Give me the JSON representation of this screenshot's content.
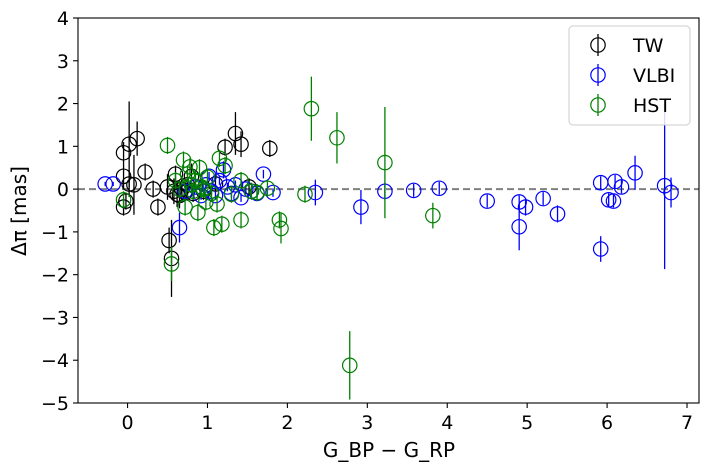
{
  "chart_data": {
    "type": "scatter",
    "xlabel": "G_BP − G_RP",
    "ylabel": "Δπ   [mas]",
    "xlim": [
      -0.62,
      7.15
    ],
    "ylim": [
      -5,
      4
    ],
    "x_ticks": [
      0,
      1,
      2,
      3,
      4,
      5,
      6,
      7
    ],
    "y_ticks": [
      4,
      3,
      2,
      1,
      0,
      -1,
      -2,
      -3,
      -4,
      -5
    ],
    "reference_line": {
      "y": 0,
      "style": "dashed",
      "color": "#808080"
    },
    "legend_position": "top-right",
    "grid": false,
    "series": [
      {
        "name": "TW",
        "color": "#000000",
        "points": [
          {
            "x": -0.05,
            "y": 0.85,
            "err": 0.25
          },
          {
            "x": 0.02,
            "y": 1.05,
            "err": 1.0
          },
          {
            "x": 0.12,
            "y": 1.18,
            "err": 0.4
          },
          {
            "x": -0.05,
            "y": 0.3,
            "err": 0.3
          },
          {
            "x": 0.02,
            "y": 0.12,
            "err": 0.3
          },
          {
            "x": 0.08,
            "y": 0.1,
            "err": 0.7
          },
          {
            "x": 0.22,
            "y": 0.4,
            "err": 0.2
          },
          {
            "x": 0.32,
            "y": 0.0,
            "err": 0.2
          },
          {
            "x": 0.38,
            "y": -0.42,
            "err": 0.2
          },
          {
            "x": 0.5,
            "y": 0.05,
            "err": 0.3
          },
          {
            "x": -0.05,
            "y": -0.42,
            "err": 0.2
          },
          {
            "x": -0.02,
            "y": -0.28,
            "err": 0.2
          },
          {
            "x": 0.52,
            "y": -1.2,
            "err": 0.3
          },
          {
            "x": 0.55,
            "y": -1.62,
            "err": 0.9
          },
          {
            "x": 0.58,
            "y": -0.05,
            "err": 0.3
          },
          {
            "x": 0.6,
            "y": 0.35,
            "err": 0.2
          },
          {
            "x": 0.62,
            "y": -0.12,
            "err": 0.3
          },
          {
            "x": 0.65,
            "y": -0.15,
            "err": 0.3
          },
          {
            "x": 0.68,
            "y": 0.0,
            "err": 0.3
          },
          {
            "x": 0.72,
            "y": -0.08,
            "err": 0.2
          },
          {
            "x": 0.75,
            "y": 0.1,
            "err": 0.3
          },
          {
            "x": 0.8,
            "y": 0.3,
            "err": 0.3
          },
          {
            "x": 0.82,
            "y": -0.1,
            "err": 0.2
          },
          {
            "x": 0.95,
            "y": -0.05,
            "err": 0.2
          },
          {
            "x": 1.1,
            "y": 0.12,
            "err": 0.2
          },
          {
            "x": 1.22,
            "y": 0.98,
            "err": 0.2
          },
          {
            "x": 1.35,
            "y": 1.3,
            "err": 0.5
          },
          {
            "x": 1.42,
            "y": 1.05,
            "err": 0.3
          },
          {
            "x": 1.52,
            "y": 0.05,
            "err": 0.2
          },
          {
            "x": 1.78,
            "y": 0.95,
            "err": 0.2
          }
        ]
      },
      {
        "name": "VLBI",
        "color": "#0000ff",
        "points": [
          {
            "x": -0.28,
            "y": 0.12,
            "err": 0.05
          },
          {
            "x": -0.18,
            "y": 0.12,
            "err": 0.05
          },
          {
            "x": 0.65,
            "y": -0.9,
            "err": 0.35
          },
          {
            "x": 0.72,
            "y": -0.05,
            "err": 0.1
          },
          {
            "x": 0.85,
            "y": 0.05,
            "err": 0.1
          },
          {
            "x": 0.92,
            "y": -0.15,
            "err": 0.1
          },
          {
            "x": 0.98,
            "y": 0.1,
            "err": 0.1
          },
          {
            "x": 1.02,
            "y": 0.3,
            "err": 0.1
          },
          {
            "x": 1.05,
            "y": -0.05,
            "err": 0.1
          },
          {
            "x": 1.1,
            "y": -0.15,
            "err": 0.1
          },
          {
            "x": 1.15,
            "y": 0.2,
            "err": 0.1
          },
          {
            "x": 1.2,
            "y": 0.45,
            "err": 0.2
          },
          {
            "x": 1.25,
            "y": 0.05,
            "err": 0.1
          },
          {
            "x": 1.3,
            "y": -0.1,
            "err": 0.1
          },
          {
            "x": 1.35,
            "y": 0.1,
            "err": 0.1
          },
          {
            "x": 1.42,
            "y": -0.2,
            "err": 0.1
          },
          {
            "x": 1.48,
            "y": 0.0,
            "err": 0.1
          },
          {
            "x": 1.55,
            "y": -0.05,
            "err": 0.1
          },
          {
            "x": 1.62,
            "y": -0.1,
            "err": 0.1
          },
          {
            "x": 1.7,
            "y": 0.35,
            "err": 0.1
          },
          {
            "x": 1.82,
            "y": -0.08,
            "err": 0.1
          },
          {
            "x": 2.35,
            "y": -0.08,
            "err": 0.3
          },
          {
            "x": 2.92,
            "y": -0.42,
            "err": 0.4
          },
          {
            "x": 3.22,
            "y": -0.05,
            "err": 0.2
          },
          {
            "x": 3.58,
            "y": -0.03,
            "err": 0.15
          },
          {
            "x": 3.9,
            "y": 0.02,
            "err": 0.15
          },
          {
            "x": 4.5,
            "y": -0.28,
            "err": 0.15
          },
          {
            "x": 4.9,
            "y": -0.3,
            "err": 0.15
          },
          {
            "x": 4.9,
            "y": -0.88,
            "err": 0.55
          },
          {
            "x": 4.98,
            "y": -0.42,
            "err": 0.2
          },
          {
            "x": 5.2,
            "y": -0.22,
            "err": 0.15
          },
          {
            "x": 5.38,
            "y": -0.58,
            "err": 0.2
          },
          {
            "x": 5.92,
            "y": 0.15,
            "err": 0.15
          },
          {
            "x": 5.92,
            "y": -1.4,
            "err": 0.3
          },
          {
            "x": 6.02,
            "y": -0.25,
            "err": 0.15
          },
          {
            "x": 6.08,
            "y": -0.28,
            "err": 0.15
          },
          {
            "x": 6.1,
            "y": 0.18,
            "err": 0.15
          },
          {
            "x": 6.18,
            "y": 0.05,
            "err": 0.15
          },
          {
            "x": 6.35,
            "y": 0.38,
            "err": 0.4
          },
          {
            "x": 6.72,
            "y": 0.08,
            "err": 1.95
          },
          {
            "x": 6.8,
            "y": -0.08,
            "err": 0.35
          }
        ]
      },
      {
        "name": "HST",
        "color": "#008000",
        "points": [
          {
            "x": -0.05,
            "y": -0.25,
            "err": 0.2
          },
          {
            "x": 0.5,
            "y": 1.02,
            "err": 0.2
          },
          {
            "x": 0.55,
            "y": -1.75,
            "err": 0.4
          },
          {
            "x": 0.6,
            "y": 0.2,
            "err": 0.2
          },
          {
            "x": 0.65,
            "y": 0.0,
            "err": 0.2
          },
          {
            "x": 0.7,
            "y": 0.68,
            "err": 0.2
          },
          {
            "x": 0.72,
            "y": -0.42,
            "err": 0.2
          },
          {
            "x": 0.75,
            "y": 0.35,
            "err": 0.2
          },
          {
            "x": 0.78,
            "y": 0.52,
            "err": 0.2
          },
          {
            "x": 0.8,
            "y": 0.1,
            "err": 0.2
          },
          {
            "x": 0.82,
            "y": -0.05,
            "err": 0.2
          },
          {
            "x": 0.85,
            "y": 0.2,
            "err": 0.2
          },
          {
            "x": 0.88,
            "y": -0.55,
            "err": 0.2
          },
          {
            "x": 0.9,
            "y": 0.5,
            "err": 0.2
          },
          {
            "x": 0.92,
            "y": 0.05,
            "err": 0.2
          },
          {
            "x": 0.95,
            "y": 0.0,
            "err": 0.2
          },
          {
            "x": 0.98,
            "y": -0.3,
            "err": 0.2
          },
          {
            "x": 1.0,
            "y": 0.28,
            "err": 0.2
          },
          {
            "x": 1.05,
            "y": -0.1,
            "err": 0.2
          },
          {
            "x": 1.08,
            "y": -0.9,
            "err": 0.2
          },
          {
            "x": 1.12,
            "y": -0.35,
            "err": 0.2
          },
          {
            "x": 1.15,
            "y": 0.72,
            "err": 0.2
          },
          {
            "x": 1.18,
            "y": -0.82,
            "err": 0.2
          },
          {
            "x": 1.22,
            "y": 0.55,
            "err": 0.2
          },
          {
            "x": 1.3,
            "y": -0.12,
            "err": 0.2
          },
          {
            "x": 1.42,
            "y": -0.72,
            "err": 0.2
          },
          {
            "x": 1.42,
            "y": 0.2,
            "err": 0.2
          },
          {
            "x": 1.55,
            "y": -0.05,
            "err": 0.2
          },
          {
            "x": 1.62,
            "y": -0.08,
            "err": 0.2
          },
          {
            "x": 1.75,
            "y": 0.02,
            "err": 0.2
          },
          {
            "x": 1.9,
            "y": -0.72,
            "err": 0.2
          },
          {
            "x": 1.92,
            "y": -0.92,
            "err": 0.35
          },
          {
            "x": 2.22,
            "y": -0.12,
            "err": 0.2
          },
          {
            "x": 2.3,
            "y": 1.88,
            "err": 0.75
          },
          {
            "x": 2.62,
            "y": 1.2,
            "err": 0.6
          },
          {
            "x": 2.78,
            "y": -4.12,
            "err": 0.8
          },
          {
            "x": 3.22,
            "y": 0.62,
            "err": 1.3
          },
          {
            "x": 3.82,
            "y": -0.62,
            "err": 0.3
          }
        ]
      }
    ]
  }
}
